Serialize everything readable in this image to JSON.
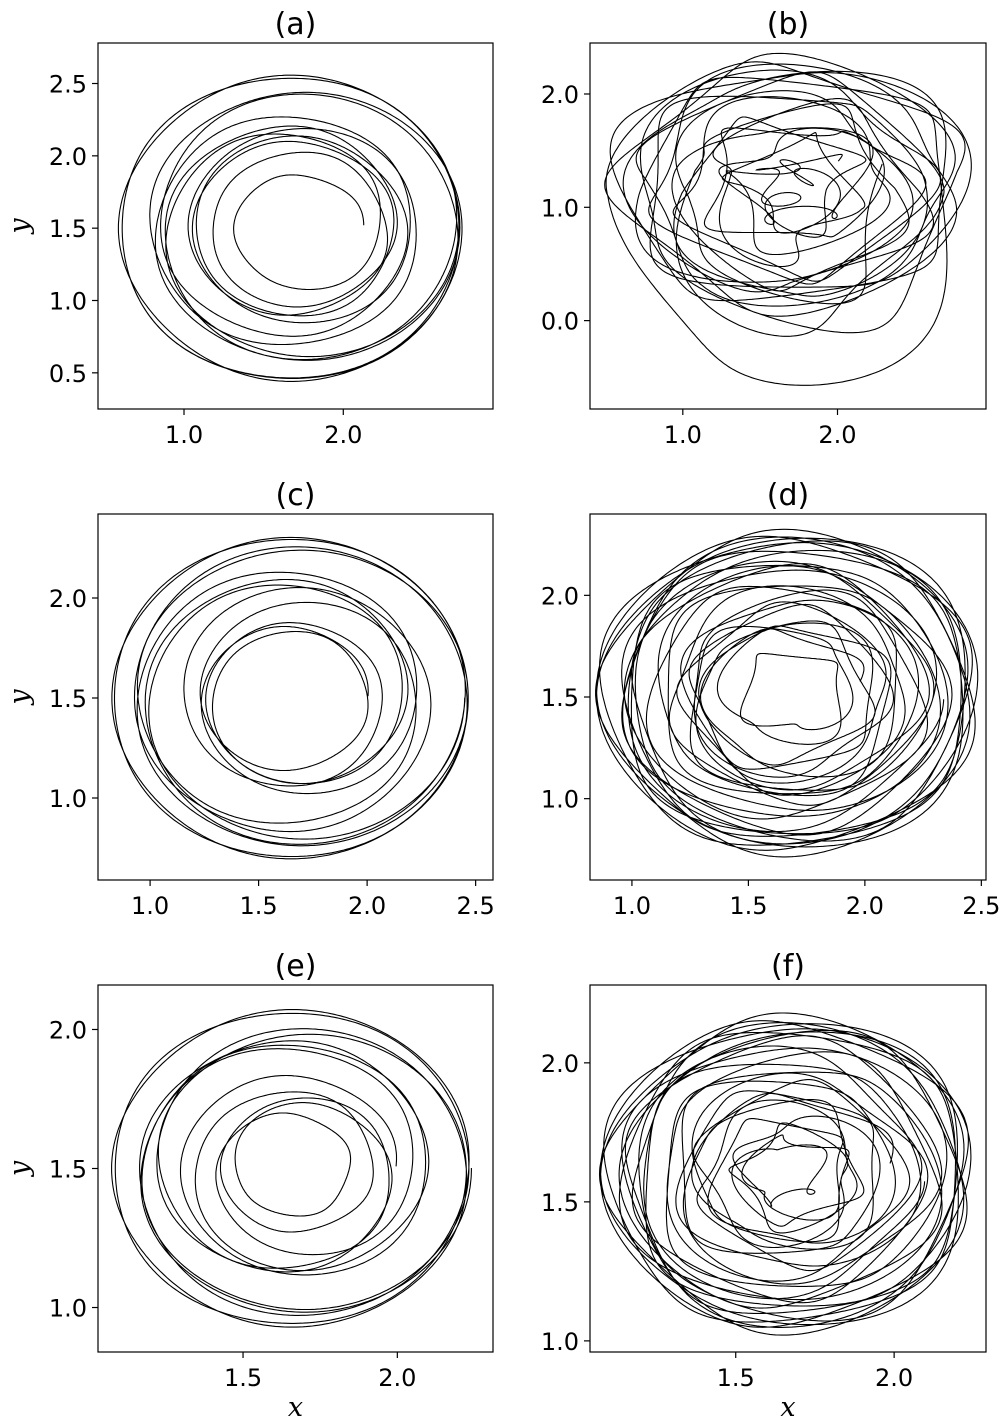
{
  "chart_data": [
    {
      "type": "line",
      "title": "(a)",
      "xlabel": "",
      "ylabel": "y",
      "xlim": [
        0.46,
        2.94
      ],
      "ylim": [
        0.25,
        2.78
      ],
      "xticks": [
        1.0,
        2.0
      ],
      "xtick_labels": [
        "1.0",
        "2.0"
      ],
      "yticks": [
        0.5,
        1.0,
        1.5,
        2.0,
        2.5
      ],
      "ytick_labels": [
        "0.5",
        "1.0",
        "1.5",
        "2.0",
        "2.5"
      ],
      "trajectory": {
        "center": [
          1.7,
          1.5
        ],
        "outer_radius": 1.1,
        "inner_radius": 0.22,
        "petals": 5,
        "loops": 13,
        "wobble": 0.04
      },
      "grid": false,
      "legend": "none"
    },
    {
      "type": "line",
      "title": "(b)",
      "xlabel": "",
      "ylabel": "",
      "xlim": [
        0.4,
        2.96
      ],
      "ylim": [
        -0.78,
        2.45
      ],
      "xticks": [
        1.0,
        2.0
      ],
      "xtick_labels": [
        "1.0",
        "2.0"
      ],
      "yticks": [
        0.0,
        1.0,
        2.0
      ],
      "ytick_labels": [
        "0.0",
        "1.0",
        "2.0"
      ],
      "trajectory": {
        "center": [
          1.7,
          1.2
        ],
        "outer_radius": 1.1,
        "inner_radius": 0.15,
        "petals": 7,
        "loops": 20,
        "wobble": 0.35,
        "drift_down": 0.75
      },
      "grid": false,
      "legend": "none"
    },
    {
      "type": "line",
      "title": "(c)",
      "xlabel": "",
      "ylabel": "y",
      "xlim": [
        0.76,
        2.58
      ],
      "ylim": [
        0.59,
        2.42
      ],
      "xticks": [
        1.0,
        1.5,
        2.0,
        2.5
      ],
      "xtick_labels": [
        "1.0",
        "1.5",
        "2.0",
        "2.5"
      ],
      "yticks": [
        1.0,
        1.5,
        2.0
      ],
      "ytick_labels": [
        "1.0",
        "1.5",
        "2.0"
      ],
      "trajectory": {
        "center": [
          1.66,
          1.5
        ],
        "outer_radius": 0.83,
        "inner_radius": 0.33,
        "petals": 5,
        "loops": 12,
        "wobble": 0.02
      },
      "grid": false,
      "legend": "none"
    },
    {
      "type": "line",
      "title": "(d)",
      "xlabel": "",
      "ylabel": "",
      "xlim": [
        0.82,
        2.52
      ],
      "ylim": [
        0.6,
        2.4
      ],
      "xticks": [
        1.0,
        1.5,
        2.0,
        2.5
      ],
      "xtick_labels": [
        "1.0",
        "1.5",
        "2.0",
        "2.5"
      ],
      "yticks": [
        1.0,
        1.5,
        2.0
      ],
      "ytick_labels": [
        "1.0",
        "1.5",
        "2.0"
      ],
      "trajectory": {
        "center": [
          1.68,
          1.52
        ],
        "outer_radius": 0.8,
        "inner_radius": 0.15,
        "petals": 7,
        "loops": 26,
        "wobble": 0.12
      },
      "grid": false,
      "legend": "none"
    },
    {
      "type": "line",
      "title": "(e)",
      "xlabel": "x",
      "ylabel": "y",
      "xlim": [
        1.03,
        2.31
      ],
      "ylim": [
        0.84,
        2.16
      ],
      "xticks": [
        1.5,
        2.0
      ],
      "xtick_labels": [
        "1.5",
        "2.0"
      ],
      "yticks": [
        1.0,
        1.5,
        2.0
      ],
      "ytick_labels": [
        "1.0",
        "1.5",
        "2.0"
      ],
      "trajectory": {
        "center": [
          1.67,
          1.5
        ],
        "outer_radius": 0.59,
        "inner_radius": 0.15,
        "petals": 5,
        "loops": 12,
        "wobble": 0.02
      },
      "grid": false,
      "legend": "none"
    },
    {
      "type": "line",
      "title": "(f)",
      "xlabel": "x",
      "ylabel": "",
      "xlim": [
        1.04,
        2.29
      ],
      "ylim": [
        0.96,
        2.28
      ],
      "xticks": [
        1.5,
        2.0
      ],
      "xtick_labels": [
        "1.5",
        "2.0"
      ],
      "yticks": [
        1.0,
        1.5,
        2.0
      ],
      "ytick_labels": [
        "1.0",
        "1.5",
        "2.0"
      ],
      "trajectory": {
        "center": [
          1.67,
          1.6
        ],
        "outer_radius": 0.57,
        "inner_radius": 0.1,
        "petals": 7,
        "loops": 26,
        "wobble": 0.1
      },
      "grid": false,
      "legend": "none"
    }
  ]
}
